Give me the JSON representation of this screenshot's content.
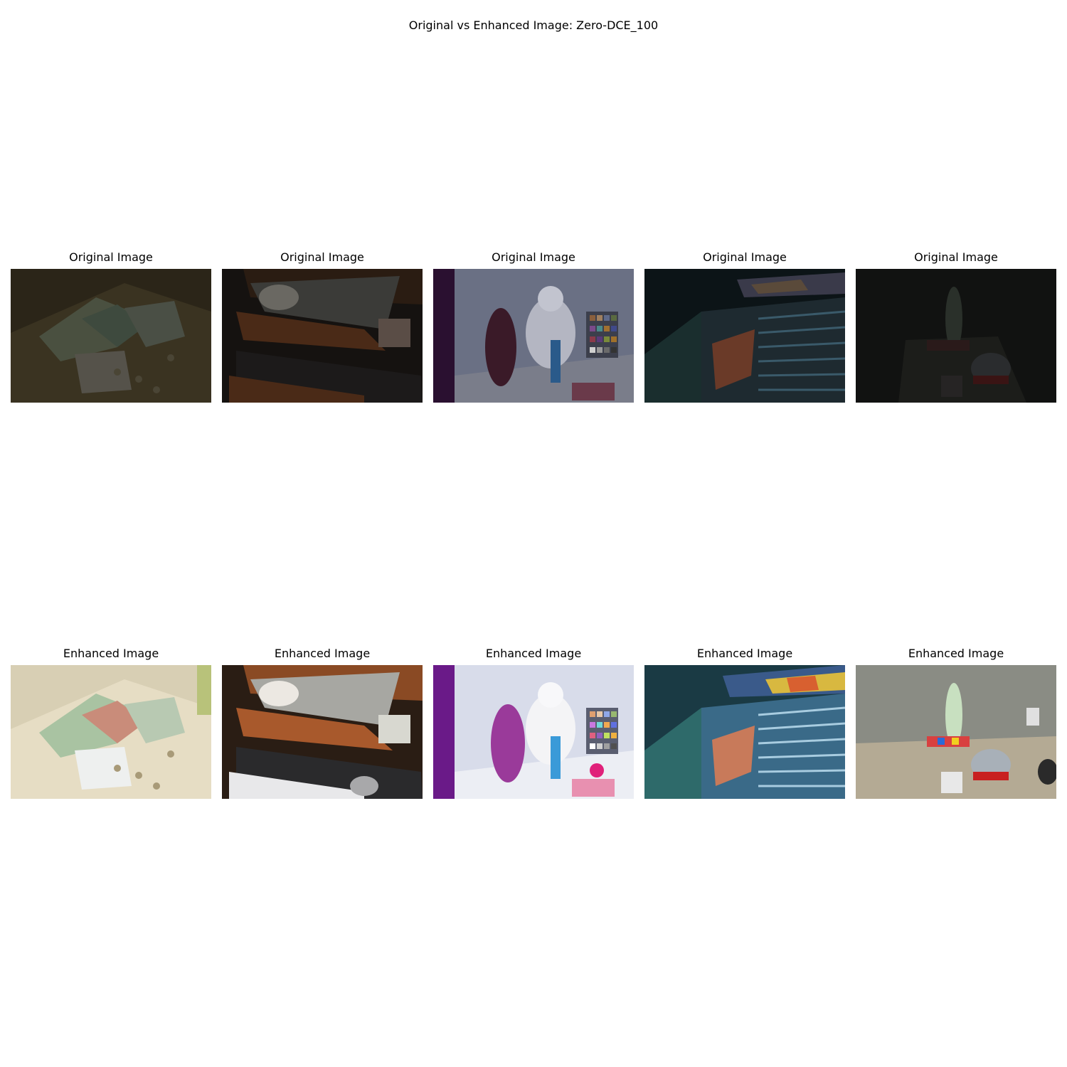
{
  "figure": {
    "suptitle": "Original vs Enhanced Image: Zero-DCE_100"
  },
  "rows": [
    {
      "kind": "original",
      "panels": [
        {
          "title": "Original Image",
          "scene": "money-on-table",
          "tone": "dark-olive"
        },
        {
          "title": "Original Image",
          "scene": "open-drawers",
          "tone": "dark-brown"
        },
        {
          "title": "Original Image",
          "scene": "toys-and-color-chart",
          "tone": "dim-grey-blue"
        },
        {
          "title": "Original Image",
          "scene": "stadium-seats",
          "tone": "dark-teal"
        },
        {
          "title": "Original Image",
          "scene": "items-on-floor",
          "tone": "near-black"
        }
      ]
    },
    {
      "kind": "enhanced",
      "panels": [
        {
          "title": "Enhanced Image",
          "scene": "money-on-table",
          "tone": "bright-beige"
        },
        {
          "title": "Enhanced Image",
          "scene": "open-drawers",
          "tone": "bright-wood"
        },
        {
          "title": "Enhanced Image",
          "scene": "toys-and-color-chart",
          "tone": "bright-white-violet"
        },
        {
          "title": "Enhanced Image",
          "scene": "stadium-seats",
          "tone": "bright-blue"
        },
        {
          "title": "Enhanced Image",
          "scene": "items-on-floor",
          "tone": "bright-grey"
        }
      ]
    }
  ]
}
